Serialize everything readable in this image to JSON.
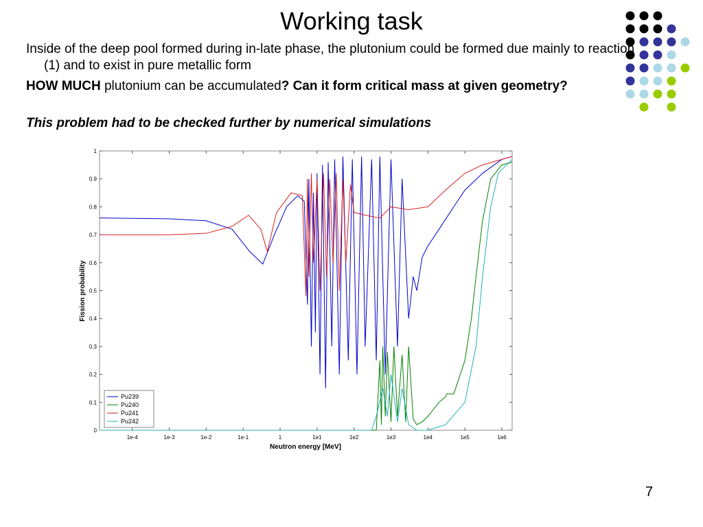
{
  "slide": {
    "title": "Working task",
    "bullets": [
      {
        "parts": [
          "Inside of the deep pool formed during in-late phase, the plutonium could be formed due mainly to reaction (1) and to exist in pure metallic form"
        ]
      },
      {
        "parts": [
          "HOW MUCH",
          " plutonium can be accumulated",
          "? Can it form critical mass at given geometry?"
        ]
      },
      {
        "parts": [
          "This problem had to be checked further by numerical simulations"
        ]
      }
    ],
    "page_number": "7"
  },
  "chart_data": {
    "type": "line",
    "xlabel": "Neutron energy [MeV]",
    "ylabel": "Fission probability",
    "xscale": "log",
    "xlim": [
      1.3e-05,
      1900000.0
    ],
    "ylim": [
      0,
      1
    ],
    "xticks": [
      {
        "value": 0.0001,
        "label": "1e-4"
      },
      {
        "value": 0.001,
        "label": "1e-3"
      },
      {
        "value": 0.01,
        "label": "1e-2"
      },
      {
        "value": 0.1,
        "label": "1e-1"
      },
      1,
      {
        "value": 10,
        "label": "1e1"
      },
      {
        "value": 100,
        "label": "1e2"
      },
      {
        "value": 1000,
        "label": "1e3"
      },
      {
        "value": 10000,
        "label": "1e4"
      },
      {
        "value": 100000,
        "label": "1e5"
      },
      {
        "value": 1000000,
        "label": "1e6"
      }
    ],
    "yticks": [
      0,
      0.1,
      0.2,
      0.3,
      0.4,
      0.5,
      0.6,
      0.7,
      0.8,
      0.9,
      1
    ],
    "grid": false,
    "legend": "lower left",
    "series": [
      {
        "name": "Pu239",
        "color": "#0000cc",
        "x": [
          1.3e-05,
          0.001,
          0.01,
          0.05,
          0.15,
          0.34,
          0.7,
          1.5,
          3,
          4.5,
          5.5,
          6,
          7,
          8,
          9,
          10,
          12,
          14,
          17,
          20,
          25,
          30,
          40,
          50,
          70,
          90,
          120,
          160,
          200,
          300,
          400,
          500,
          700,
          1000,
          1500,
          2000,
          3000,
          4000,
          5000,
          7000,
          10000.0,
          20000.0,
          50000.0,
          100000.0,
          300000.0,
          1000000.0,
          1900000.0
        ],
        "values": [
          0.76,
          0.757,
          0.75,
          0.72,
          0.64,
          0.595,
          0.7,
          0.8,
          0.84,
          0.82,
          0.45,
          0.9,
          0.3,
          0.85,
          0.35,
          0.92,
          0.2,
          0.95,
          0.15,
          0.96,
          0.3,
          0.97,
          0.2,
          0.98,
          0.25,
          0.97,
          0.2,
          0.98,
          0.3,
          0.97,
          0.25,
          0.98,
          0.2,
          0.97,
          0.3,
          0.9,
          0.4,
          0.55,
          0.5,
          0.62,
          0.66,
          0.72,
          0.8,
          0.86,
          0.92,
          0.97,
          0.98
        ]
      },
      {
        "name": "Pu240",
        "color": "#008000",
        "x": [
          1.3e-05,
          400,
          500,
          550,
          600,
          700,
          800,
          1000,
          1200,
          1500,
          2000,
          2500,
          3000,
          4000,
          5000,
          7000,
          10000.0,
          20000.0,
          30000.0,
          32000.0,
          50000.0,
          100000.0,
          150000.0,
          200000.0,
          300000.0,
          500000.0,
          1000000.0,
          1900000.0
        ],
        "values": [
          0,
          0,
          0.25,
          0.02,
          0.3,
          0.05,
          0.28,
          0.03,
          0.3,
          0.05,
          0.27,
          0.03,
          0.3,
          0.04,
          0.02,
          0.03,
          0.05,
          0.1,
          0.12,
          0.13,
          0.13,
          0.25,
          0.4,
          0.55,
          0.75,
          0.9,
          0.95,
          0.96
        ]
      },
      {
        "name": "Pu241",
        "color": "#d62020",
        "x": [
          1.3e-05,
          0.001,
          0.01,
          0.05,
          0.14,
          0.3,
          0.45,
          0.8,
          2,
          4,
          5,
          5.5,
          6,
          7,
          8,
          10,
          12,
          15,
          18,
          22,
          27,
          33,
          40,
          50,
          60,
          80,
          100,
          200,
          500,
          1000,
          3000,
          10000.0,
          30000.0,
          100000.0,
          300000.0,
          1000000.0,
          1900000.0
        ],
        "values": [
          0.7,
          0.7,
          0.705,
          0.73,
          0.77,
          0.72,
          0.64,
          0.78,
          0.85,
          0.84,
          0.48,
          0.9,
          0.55,
          0.92,
          0.6,
          0.9,
          0.5,
          0.92,
          0.55,
          0.9,
          0.6,
          0.92,
          0.5,
          0.9,
          0.6,
          0.88,
          0.78,
          0.77,
          0.76,
          0.8,
          0.79,
          0.8,
          0.86,
          0.92,
          0.95,
          0.97,
          0.98
        ]
      },
      {
        "name": "Pu242",
        "color": "#20b0b0",
        "x": [
          1.3e-05,
          300,
          400,
          600,
          800,
          1000,
          1500,
          2000,
          3000,
          5000,
          10000.0,
          30000.0,
          100000.0,
          200000.0,
          300000.0,
          500000.0,
          800000.0,
          1900000.0
        ],
        "values": [
          0,
          0,
          0.05,
          0.15,
          0.05,
          0.2,
          0.03,
          0.15,
          0.02,
          0,
          0,
          0.02,
          0.1,
          0.3,
          0.55,
          0.8,
          0.92,
          0.97
        ]
      }
    ]
  }
}
